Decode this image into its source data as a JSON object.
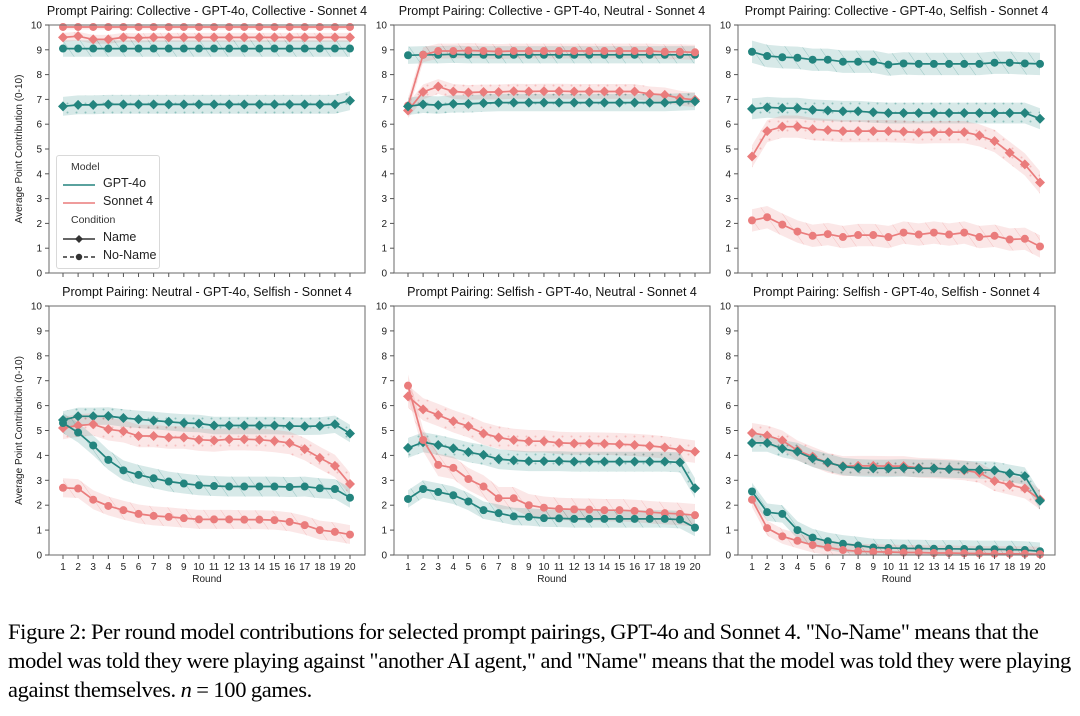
{
  "figure": {
    "caption_parts": {
      "main": "Figure 2: Per round model contributions for selected prompt pairings, GPT-4o and Sonnet 4. \"No-Name\" means that the model was told they were playing against \"another AI agent,\" and \"Name\" means that the model was told they were playing against themselves. ",
      "math": "n",
      "tail": " = 100 games."
    }
  },
  "legend": {
    "model_title": "Model",
    "models": [
      {
        "name": "GPT-4o",
        "color": "#23847e"
      },
      {
        "name": "Sonnet 4",
        "color": "#ea7c7c"
      }
    ],
    "condition_title": "Condition",
    "conditions": [
      {
        "name": "Name",
        "linestyle": "solid",
        "marker": "diamond"
      },
      {
        "name": "No-Name",
        "linestyle": "dashed",
        "marker": "circle"
      }
    ]
  },
  "chart_data": [
    {
      "type": "line",
      "title": "Prompt Pairing: Collective - GPT-4o, Collective - Sonnet 4",
      "xlabel": "",
      "ylabel": "Average Point Contribution (0-10)",
      "ylim": [
        0,
        10
      ],
      "yticks": [
        0,
        1,
        2,
        3,
        4,
        5,
        6,
        7,
        8,
        9,
        10
      ],
      "x": [
        1,
        2,
        3,
        4,
        5,
        6,
        7,
        8,
        9,
        10,
        11,
        12,
        13,
        14,
        15,
        16,
        17,
        18,
        19,
        20
      ],
      "show_xticklabels": false,
      "legend": "lower-left",
      "series": [
        {
          "model": "Sonnet 4",
          "condition": "No-Name",
          "values": [
            9.92,
            9.92,
            9.92,
            9.92,
            9.92,
            9.92,
            9.92,
            9.92,
            9.92,
            9.92,
            9.92,
            9.92,
            9.92,
            9.92,
            9.92,
            9.92,
            9.92,
            9.92,
            9.92,
            9.92
          ],
          "ci": 0.1,
          "hatch": "dots"
        },
        {
          "model": "Sonnet 4",
          "condition": "Name",
          "values": [
            9.5,
            9.55,
            9.42,
            9.42,
            9.5,
            9.48,
            9.5,
            9.5,
            9.5,
            9.5,
            9.5,
            9.5,
            9.5,
            9.5,
            9.5,
            9.5,
            9.5,
            9.5,
            9.5,
            9.5
          ],
          "ci": 0.18,
          "hatch": "slash"
        },
        {
          "model": "GPT-4o",
          "condition": "No-Name",
          "values": [
            9.05,
            9.05,
            9.05,
            9.05,
            9.05,
            9.05,
            9.05,
            9.05,
            9.05,
            9.05,
            9.05,
            9.05,
            9.05,
            9.05,
            9.05,
            9.05,
            9.05,
            9.05,
            9.05,
            9.05
          ],
          "ci": 0.33,
          "hatch": "slash"
        },
        {
          "model": "GPT-4o",
          "condition": "Name",
          "values": [
            6.72,
            6.78,
            6.78,
            6.8,
            6.8,
            6.8,
            6.8,
            6.8,
            6.8,
            6.8,
            6.8,
            6.8,
            6.8,
            6.8,
            6.8,
            6.8,
            6.8,
            6.8,
            6.8,
            6.95
          ],
          "ci": 0.38,
          "hatch": "dots"
        }
      ]
    },
    {
      "type": "line",
      "title": "Prompt Pairing: Collective - GPT-4o, Neutral - Sonnet 4",
      "xlabel": "",
      "ylabel": "",
      "ylim": [
        0,
        10
      ],
      "yticks": [
        0,
        1,
        2,
        3,
        4,
        5,
        6,
        7,
        8,
        9,
        10
      ],
      "x": [
        1,
        2,
        3,
        4,
        5,
        6,
        7,
        8,
        9,
        10,
        11,
        12,
        13,
        14,
        15,
        16,
        17,
        18,
        19,
        20
      ],
      "show_xticklabels": false,
      "series": [
        {
          "model": "GPT-4o",
          "condition": "No-Name",
          "values": [
            8.78,
            8.8,
            8.8,
            8.82,
            8.8,
            8.8,
            8.8,
            8.8,
            8.8,
            8.8,
            8.8,
            8.8,
            8.8,
            8.8,
            8.8,
            8.8,
            8.8,
            8.8,
            8.8,
            8.8
          ],
          "ci": 0.35,
          "hatch": "slash"
        },
        {
          "model": "Sonnet 4",
          "condition": "No-Name",
          "values": [
            6.75,
            8.8,
            8.95,
            8.95,
            8.97,
            8.95,
            8.93,
            8.95,
            8.95,
            8.95,
            8.95,
            8.95,
            8.95,
            8.95,
            8.95,
            8.95,
            8.95,
            8.92,
            8.92,
            8.9
          ],
          "ci": 0.3,
          "hatch": "slash"
        },
        {
          "model": "Sonnet 4",
          "condition": "Name",
          "values": [
            6.55,
            7.3,
            7.52,
            7.32,
            7.28,
            7.3,
            7.3,
            7.33,
            7.32,
            7.33,
            7.33,
            7.32,
            7.32,
            7.32,
            7.32,
            7.32,
            7.22,
            7.18,
            7.05,
            6.98
          ],
          "ci": 0.3,
          "hatch": "dots"
        },
        {
          "model": "GPT-4o",
          "condition": "Name",
          "values": [
            6.72,
            6.8,
            6.77,
            6.82,
            6.82,
            6.85,
            6.87,
            6.87,
            6.87,
            6.87,
            6.87,
            6.87,
            6.87,
            6.87,
            6.87,
            6.87,
            6.87,
            6.87,
            6.9,
            6.92
          ],
          "ci": 0.35,
          "hatch": "dots"
        }
      ]
    },
    {
      "type": "line",
      "title": "Prompt Pairing: Collective - GPT-4o, Selfish - Sonnet 4",
      "xlabel": "",
      "ylabel": "",
      "ylim": [
        0,
        10
      ],
      "yticks": [
        0,
        1,
        2,
        3,
        4,
        5,
        6,
        7,
        8,
        9,
        10
      ],
      "x": [
        1,
        2,
        3,
        4,
        5,
        6,
        7,
        8,
        9,
        10,
        11,
        12,
        13,
        14,
        15,
        16,
        17,
        18,
        19,
        20
      ],
      "show_xticklabels": false,
      "series": [
        {
          "model": "GPT-4o",
          "condition": "No-Name",
          "values": [
            8.92,
            8.75,
            8.7,
            8.68,
            8.6,
            8.6,
            8.52,
            8.52,
            8.52,
            8.4,
            8.45,
            8.43,
            8.43,
            8.43,
            8.43,
            8.43,
            8.48,
            8.48,
            8.45,
            8.43
          ],
          "ci": 0.45,
          "hatch": "slash"
        },
        {
          "model": "GPT-4o",
          "condition": "Name",
          "values": [
            6.62,
            6.68,
            6.65,
            6.65,
            6.58,
            6.55,
            6.52,
            6.52,
            6.48,
            6.45,
            6.45,
            6.45,
            6.45,
            6.45,
            6.45,
            6.45,
            6.45,
            6.45,
            6.45,
            6.22
          ],
          "ci": 0.42,
          "hatch": "dots"
        },
        {
          "model": "Sonnet 4",
          "condition": "Name",
          "values": [
            4.7,
            5.72,
            5.9,
            5.9,
            5.8,
            5.76,
            5.72,
            5.72,
            5.72,
            5.72,
            5.7,
            5.66,
            5.68,
            5.68,
            5.68,
            5.55,
            5.32,
            4.85,
            4.38,
            3.65
          ],
          "ci": 0.45,
          "hatch": "dots"
        },
        {
          "model": "Sonnet 4",
          "condition": "No-Name",
          "values": [
            2.12,
            2.25,
            1.95,
            1.67,
            1.5,
            1.57,
            1.45,
            1.53,
            1.53,
            1.45,
            1.63,
            1.55,
            1.63,
            1.55,
            1.63,
            1.45,
            1.5,
            1.35,
            1.38,
            1.07
          ],
          "ci": 0.45,
          "hatch": "slash"
        }
      ]
    },
    {
      "type": "line",
      "title": "Prompt Pairing: Neutral - GPT-4o, Selfish - Sonnet 4",
      "xlabel": "Round",
      "ylabel": "Average Point Contribution (0-10)",
      "ylim": [
        0,
        10
      ],
      "yticks": [
        0,
        1,
        2,
        3,
        4,
        5,
        6,
        7,
        8,
        9,
        10
      ],
      "x": [
        1,
        2,
        3,
        4,
        5,
        6,
        7,
        8,
        9,
        10,
        11,
        12,
        13,
        14,
        15,
        16,
        17,
        18,
        19,
        20
      ],
      "show_xticklabels": true,
      "series": [
        {
          "model": "GPT-4o",
          "condition": "Name",
          "values": [
            5.42,
            5.57,
            5.57,
            5.58,
            5.5,
            5.45,
            5.4,
            5.35,
            5.3,
            5.28,
            5.2,
            5.2,
            5.2,
            5.2,
            5.2,
            5.18,
            5.17,
            5.18,
            5.25,
            4.88
          ],
          "ci": 0.35,
          "hatch": "dots"
        },
        {
          "model": "Sonnet 4",
          "condition": "Name",
          "values": [
            5.1,
            5.2,
            5.25,
            5.05,
            4.97,
            4.78,
            4.78,
            4.72,
            4.72,
            4.63,
            4.6,
            4.65,
            4.65,
            4.63,
            4.58,
            4.5,
            4.25,
            3.9,
            3.58,
            2.85
          ],
          "ci": 0.45,
          "hatch": "dots"
        },
        {
          "model": "GPT-4o",
          "condition": "No-Name",
          "values": [
            5.3,
            4.92,
            4.4,
            3.82,
            3.4,
            3.22,
            3.08,
            2.95,
            2.87,
            2.8,
            2.77,
            2.75,
            2.75,
            2.75,
            2.75,
            2.73,
            2.75,
            2.68,
            2.65,
            2.3
          ],
          "ci": 0.4,
          "hatch": "slash"
        },
        {
          "model": "Sonnet 4",
          "condition": "No-Name",
          "values": [
            2.7,
            2.67,
            2.22,
            1.97,
            1.8,
            1.65,
            1.57,
            1.53,
            1.48,
            1.43,
            1.43,
            1.43,
            1.42,
            1.42,
            1.4,
            1.33,
            1.2,
            1.0,
            0.93,
            0.82
          ],
          "ci": 0.38,
          "hatch": "slash"
        }
      ]
    },
    {
      "type": "line",
      "title": "Prompt Pairing: Selfish - GPT-4o, Neutral - Sonnet 4",
      "xlabel": "Round",
      "ylabel": "",
      "ylim": [
        0,
        10
      ],
      "yticks": [
        0,
        1,
        2,
        3,
        4,
        5,
        6,
        7,
        8,
        9,
        10
      ],
      "x": [
        1,
        2,
        3,
        4,
        5,
        6,
        7,
        8,
        9,
        10,
        11,
        12,
        13,
        14,
        15,
        16,
        17,
        18,
        19,
        20
      ],
      "show_xticklabels": true,
      "series": [
        {
          "model": "Sonnet 4",
          "condition": "Name",
          "values": [
            6.37,
            5.85,
            5.62,
            5.37,
            5.17,
            4.88,
            4.72,
            4.62,
            4.57,
            4.57,
            4.5,
            4.48,
            4.48,
            4.47,
            4.45,
            4.42,
            4.38,
            4.32,
            4.23,
            4.15
          ],
          "ci": 0.45,
          "hatch": "dots"
        },
        {
          "model": "GPT-4o",
          "condition": "Name",
          "values": [
            4.3,
            4.53,
            4.42,
            4.28,
            4.13,
            4.02,
            3.85,
            3.8,
            3.77,
            3.77,
            3.77,
            3.75,
            3.75,
            3.75,
            3.75,
            3.75,
            3.75,
            3.75,
            3.72,
            2.68
          ],
          "ci": 0.4,
          "hatch": "dots"
        },
        {
          "model": "Sonnet 4",
          "condition": "No-Name",
          "values": [
            6.8,
            4.62,
            3.62,
            3.5,
            3.05,
            2.75,
            2.28,
            2.28,
            2.0,
            1.9,
            1.85,
            1.83,
            1.82,
            1.8,
            1.8,
            1.77,
            1.72,
            1.68,
            1.65,
            1.6
          ],
          "ci": 0.45,
          "hatch": "slash"
        },
        {
          "model": "GPT-4o",
          "condition": "No-Name",
          "values": [
            2.25,
            2.65,
            2.53,
            2.4,
            2.15,
            1.8,
            1.68,
            1.55,
            1.53,
            1.48,
            1.47,
            1.45,
            1.45,
            1.45,
            1.45,
            1.45,
            1.45,
            1.45,
            1.42,
            1.1
          ],
          "ci": 0.35,
          "hatch": "slash"
        }
      ]
    },
    {
      "type": "line",
      "title": "Prompt Pairing: Selfish - GPT-4o, Selfish - Sonnet 4",
      "xlabel": "Round",
      "ylabel": "",
      "ylim": [
        0,
        10
      ],
      "yticks": [
        0,
        1,
        2,
        3,
        4,
        5,
        6,
        7,
        8,
        9,
        10
      ],
      "x": [
        1,
        2,
        3,
        4,
        5,
        6,
        7,
        8,
        9,
        10,
        11,
        12,
        13,
        14,
        15,
        16,
        17,
        18,
        19,
        20
      ],
      "show_xticklabels": true,
      "series": [
        {
          "model": "Sonnet 4",
          "condition": "Name",
          "values": [
            4.9,
            4.8,
            4.6,
            4.2,
            3.95,
            3.7,
            3.57,
            3.58,
            3.58,
            3.57,
            3.57,
            3.5,
            3.48,
            3.45,
            3.4,
            3.3,
            2.97,
            2.82,
            2.67,
            2.23
          ],
          "ci": 0.4,
          "hatch": "dots"
        },
        {
          "model": "GPT-4o",
          "condition": "Name",
          "values": [
            4.5,
            4.5,
            4.27,
            4.15,
            3.88,
            3.72,
            3.55,
            3.5,
            3.48,
            3.48,
            3.5,
            3.48,
            3.48,
            3.45,
            3.43,
            3.42,
            3.4,
            3.28,
            3.17,
            2.18
          ],
          "ci": 0.35,
          "hatch": "dots"
        },
        {
          "model": "GPT-4o",
          "condition": "No-Name",
          "values": [
            2.55,
            1.72,
            1.65,
            1.0,
            0.7,
            0.55,
            0.45,
            0.38,
            0.3,
            0.28,
            0.27,
            0.26,
            0.25,
            0.25,
            0.24,
            0.23,
            0.23,
            0.22,
            0.2,
            0.15
          ],
          "ci": 0.35,
          "hatch": "slash"
        },
        {
          "model": "Sonnet 4",
          "condition": "No-Name",
          "values": [
            2.22,
            1.08,
            0.75,
            0.57,
            0.4,
            0.3,
            0.2,
            0.15,
            0.13,
            0.12,
            0.1,
            0.1,
            0.08,
            0.08,
            0.07,
            0.06,
            0.05,
            0.05,
            0.05,
            0.03
          ],
          "ci": 0.3,
          "hatch": "slash"
        }
      ]
    }
  ]
}
